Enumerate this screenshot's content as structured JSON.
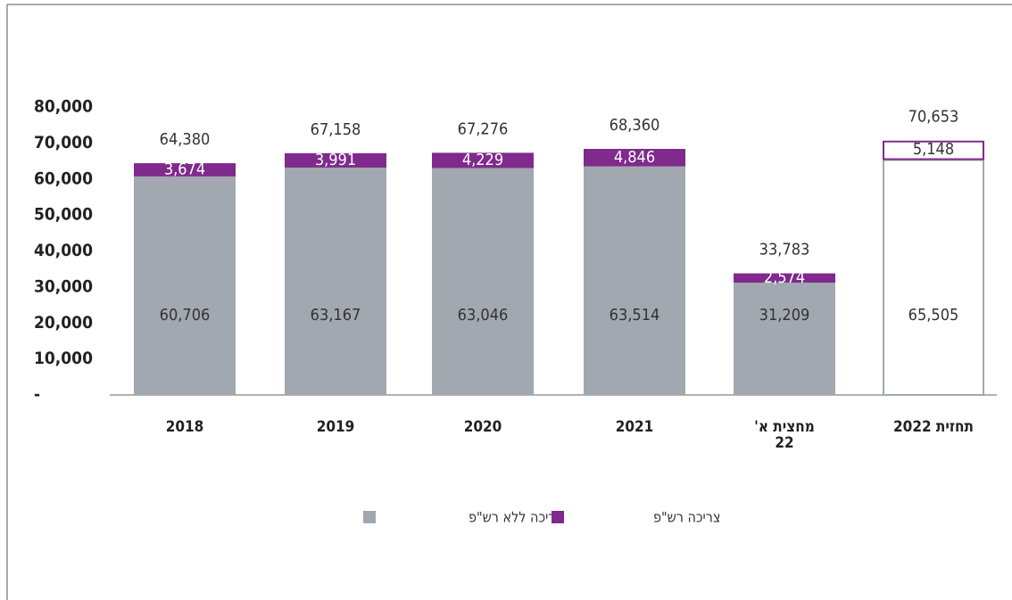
{
  "chart_data": {
    "type": "stacked_bar",
    "categories": [
      "2018",
      "2019",
      "2020",
      "2021",
      "מחצית א'\n22",
      "תחזית 2022"
    ],
    "series": [
      {
        "name": "צריכה ללא רש\"פ",
        "color": "#a1a8b0",
        "values": [
          60706,
          63167,
          63046,
          63514,
          31209,
          65505
        ],
        "value_labels": [
          "60,706",
          "63,167",
          "63,046",
          "63,514",
          "31,209",
          "65,505"
        ]
      },
      {
        "name": "צריכה רש\"פ",
        "color": "#7f2a8c",
        "values": [
          3674,
          3991,
          4229,
          4846,
          2574,
          5148
        ],
        "value_labels": [
          "3,674",
          "3,991",
          "4,229",
          "4,846",
          "2,574",
          "5,148"
        ]
      }
    ],
    "totals": [
      64380,
      67158,
      67276,
      68360,
      33783,
      70653
    ],
    "total_labels": [
      "64,380",
      "67,158",
      "67,276",
      "68,360",
      "33,783",
      "70,653"
    ],
    "hollow": [
      false,
      false,
      false,
      false,
      false,
      true
    ],
    "ylim": [
      0,
      80000
    ],
    "yticks": [
      {
        "value": 0,
        "label": "-"
      },
      {
        "value": 10000,
        "label": "10,000"
      },
      {
        "value": 20000,
        "label": "20,000"
      },
      {
        "value": 30000,
        "label": "30,000"
      },
      {
        "value": 40000,
        "label": "40,000"
      },
      {
        "value": 50000,
        "label": "50,000"
      },
      {
        "value": 60000,
        "label": "60,000"
      },
      {
        "value": 70000,
        "label": "70,000"
      },
      {
        "value": 80000,
        "label": "80,000"
      }
    ],
    "grid": false
  }
}
